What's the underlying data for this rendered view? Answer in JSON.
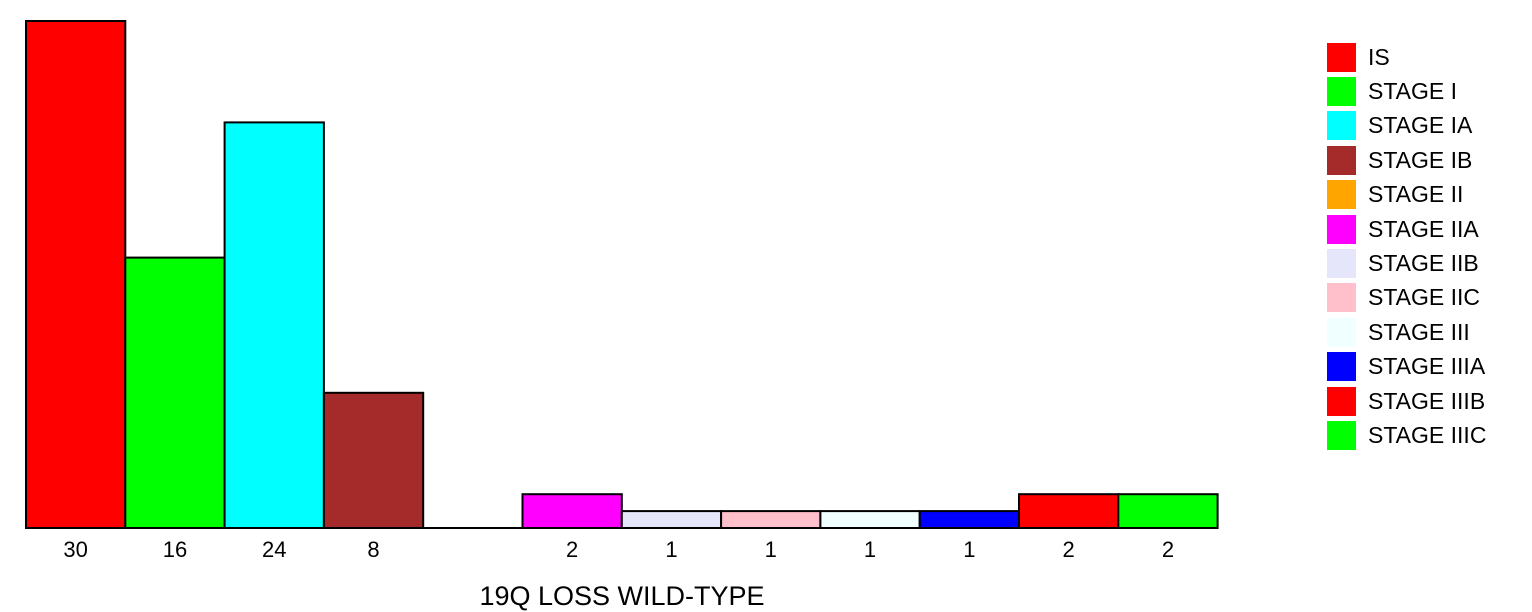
{
  "chart_data": {
    "type": "bar",
    "title": "",
    "xlabel": "19Q LOSS WILD-TYPE",
    "ylabel": "",
    "ylim": [
      0,
      30
    ],
    "categories": [
      "IS",
      "STAGE I",
      "STAGE IA",
      "STAGE IB",
      "STAGE II",
      "STAGE IIA",
      "STAGE IIB",
      "STAGE IIC",
      "STAGE III",
      "STAGE IIIA",
      "STAGE IIIB",
      "STAGE IIIC"
    ],
    "values": [
      30,
      16,
      24,
      8,
      0,
      2,
      1,
      1,
      1,
      1,
      2,
      2
    ],
    "value_labels": [
      "30",
      "16",
      "24",
      "8",
      "",
      "2",
      "1",
      "1",
      "1",
      "1",
      "2",
      "2"
    ],
    "colors": [
      "#ff0000",
      "#00ff00",
      "#00ffff",
      "#a52a2a",
      "#ffa500",
      "#ff00ff",
      "#e6e6fa",
      "#ffc0cb",
      "#f0ffff",
      "#0000ff",
      "#ff0000",
      "#00ff00"
    ],
    "legend_position": "right",
    "grid": false
  },
  "legend": {
    "items": [
      {
        "label": "IS",
        "color": "#ff0000"
      },
      {
        "label": "STAGE I",
        "color": "#00ff00"
      },
      {
        "label": "STAGE IA",
        "color": "#00ffff"
      },
      {
        "label": "STAGE IB",
        "color": "#a52a2a"
      },
      {
        "label": "STAGE II",
        "color": "#ffa500"
      },
      {
        "label": "STAGE IIA",
        "color": "#ff00ff"
      },
      {
        "label": "STAGE IIB",
        "color": "#e6e6fa"
      },
      {
        "label": "STAGE IIC",
        "color": "#ffc0cb"
      },
      {
        "label": "STAGE III",
        "color": "#f0ffff"
      },
      {
        "label": "STAGE IIIA",
        "color": "#0000ff"
      },
      {
        "label": "STAGE IIIB",
        "color": "#ff0000"
      },
      {
        "label": "STAGE IIIC",
        "color": "#00ff00"
      }
    ]
  }
}
